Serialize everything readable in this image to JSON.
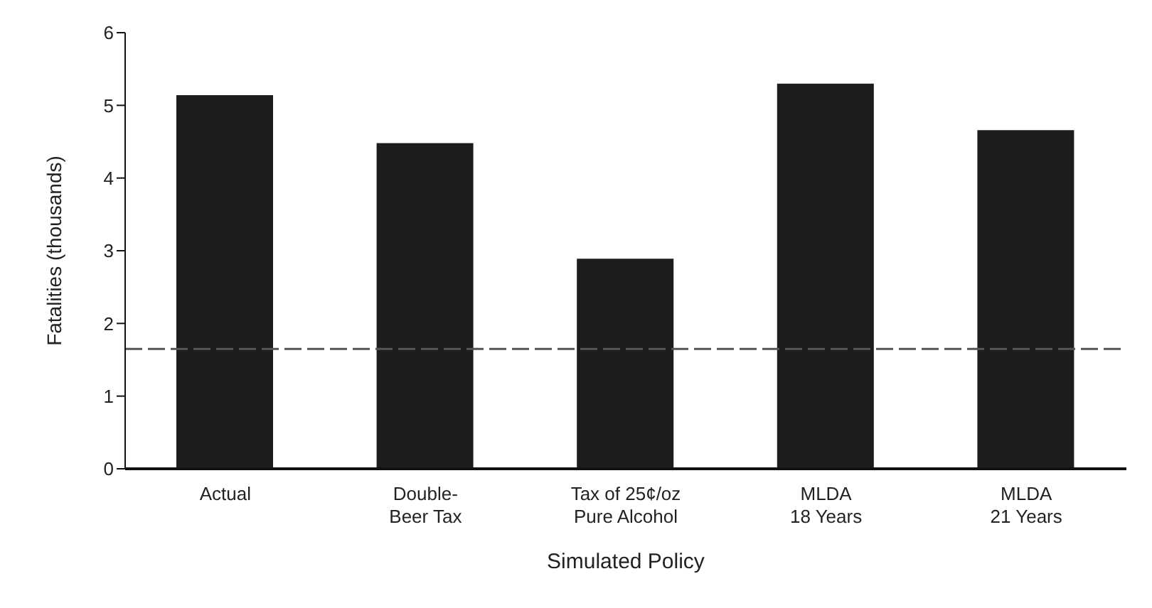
{
  "chart_data": {
    "type": "bar",
    "xlabel": "Simulated Policy",
    "ylabel": "Fatalities (thousands)",
    "categories": [
      "Actual",
      "Double-\nBeer Tax",
      "Tax of 25¢/oz\nPure Alcohol",
      "MLDA\n18 Years",
      "MLDA\n21 Years"
    ],
    "values": [
      5.14,
      4.48,
      2.89,
      5.3,
      4.66
    ],
    "color": "#1c1c1c",
    "ylim": [
      0,
      6
    ],
    "yticks": [
      0,
      1,
      2,
      3,
      4,
      5,
      6
    ],
    "grid": false,
    "ref_lines": [
      {
        "axis": "y",
        "value": 1.65,
        "color": "#555555",
        "line_style": "dashed"
      }
    ]
  }
}
